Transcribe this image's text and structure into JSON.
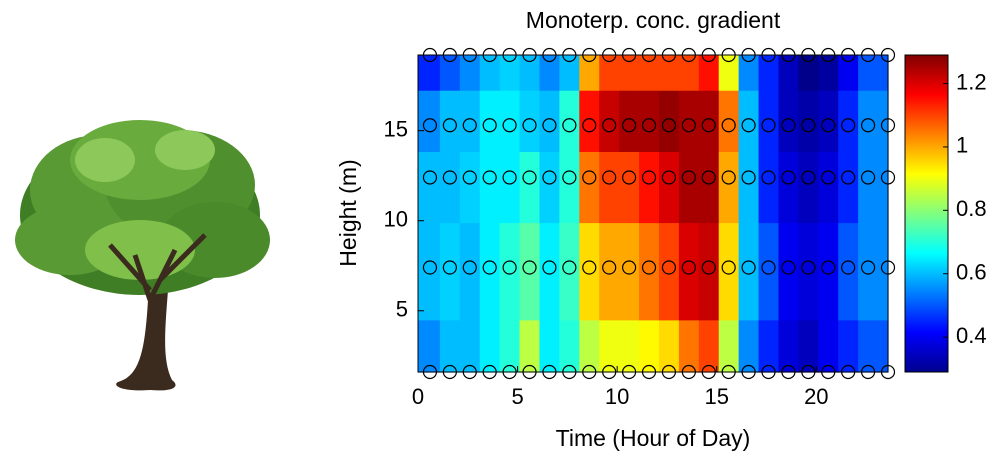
{
  "chart_data": {
    "type": "heatmap",
    "title": "Monoterp. conc. gradient",
    "x_label": "Time (Hour of Day)",
    "y_label": "Height (m)",
    "x": [
      0.6,
      1.6,
      2.6,
      3.6,
      4.6,
      5.6,
      6.6,
      7.6,
      8.6,
      9.6,
      10.6,
      11.6,
      12.6,
      13.6,
      14.6,
      15.6,
      16.6,
      17.6,
      18.6,
      19.6,
      20.6,
      21.6,
      22.6,
      23.6
    ],
    "y": [
      1.6,
      7.4,
      12.4,
      15.3,
      19.2
    ],
    "z": [
      [
        0.55,
        0.6,
        0.6,
        0.65,
        0.7,
        0.85,
        0.65,
        0.7,
        0.85,
        0.9,
        0.9,
        0.92,
        0.95,
        1.05,
        1.1,
        0.85,
        0.55,
        0.45,
        0.38,
        0.35,
        0.4,
        0.45,
        0.5,
        0.5
      ],
      [
        0.6,
        0.62,
        0.6,
        0.65,
        0.7,
        0.75,
        0.65,
        0.72,
        0.95,
        1.0,
        1.0,
        1.05,
        1.1,
        1.2,
        1.22,
        0.95,
        0.6,
        0.5,
        0.4,
        0.38,
        0.4,
        0.5,
        0.55,
        0.55
      ],
      [
        0.6,
        0.6,
        0.62,
        0.65,
        0.65,
        0.7,
        0.62,
        0.7,
        1.05,
        1.1,
        1.1,
        1.15,
        1.2,
        1.25,
        1.25,
        1.0,
        0.6,
        0.45,
        0.38,
        0.35,
        0.38,
        0.45,
        0.55,
        0.55
      ],
      [
        0.55,
        0.6,
        0.6,
        0.65,
        0.65,
        0.62,
        0.6,
        0.7,
        1.15,
        1.22,
        1.25,
        1.25,
        1.27,
        1.25,
        1.25,
        1.05,
        0.6,
        0.45,
        0.35,
        0.33,
        0.35,
        0.45,
        0.55,
        0.55
      ],
      [
        0.45,
        0.5,
        0.55,
        0.6,
        0.62,
        0.6,
        0.55,
        0.6,
        1.0,
        1.1,
        1.1,
        1.1,
        1.1,
        1.1,
        1.15,
        0.9,
        0.55,
        0.45,
        0.35,
        0.3,
        0.32,
        0.4,
        0.5,
        0.5
      ]
    ],
    "xlim": [
      0,
      23.6
    ],
    "xticks": [
      0,
      5,
      10,
      15,
      20
    ],
    "ylim": [
      1.6,
      19.2
    ],
    "yticks": [
      5,
      10,
      15
    ],
    "colormap": "jet",
    "clim": [
      0.29,
      1.29
    ],
    "cticks": [
      0.4,
      0.6,
      0.8,
      1,
      1.2
    ]
  }
}
